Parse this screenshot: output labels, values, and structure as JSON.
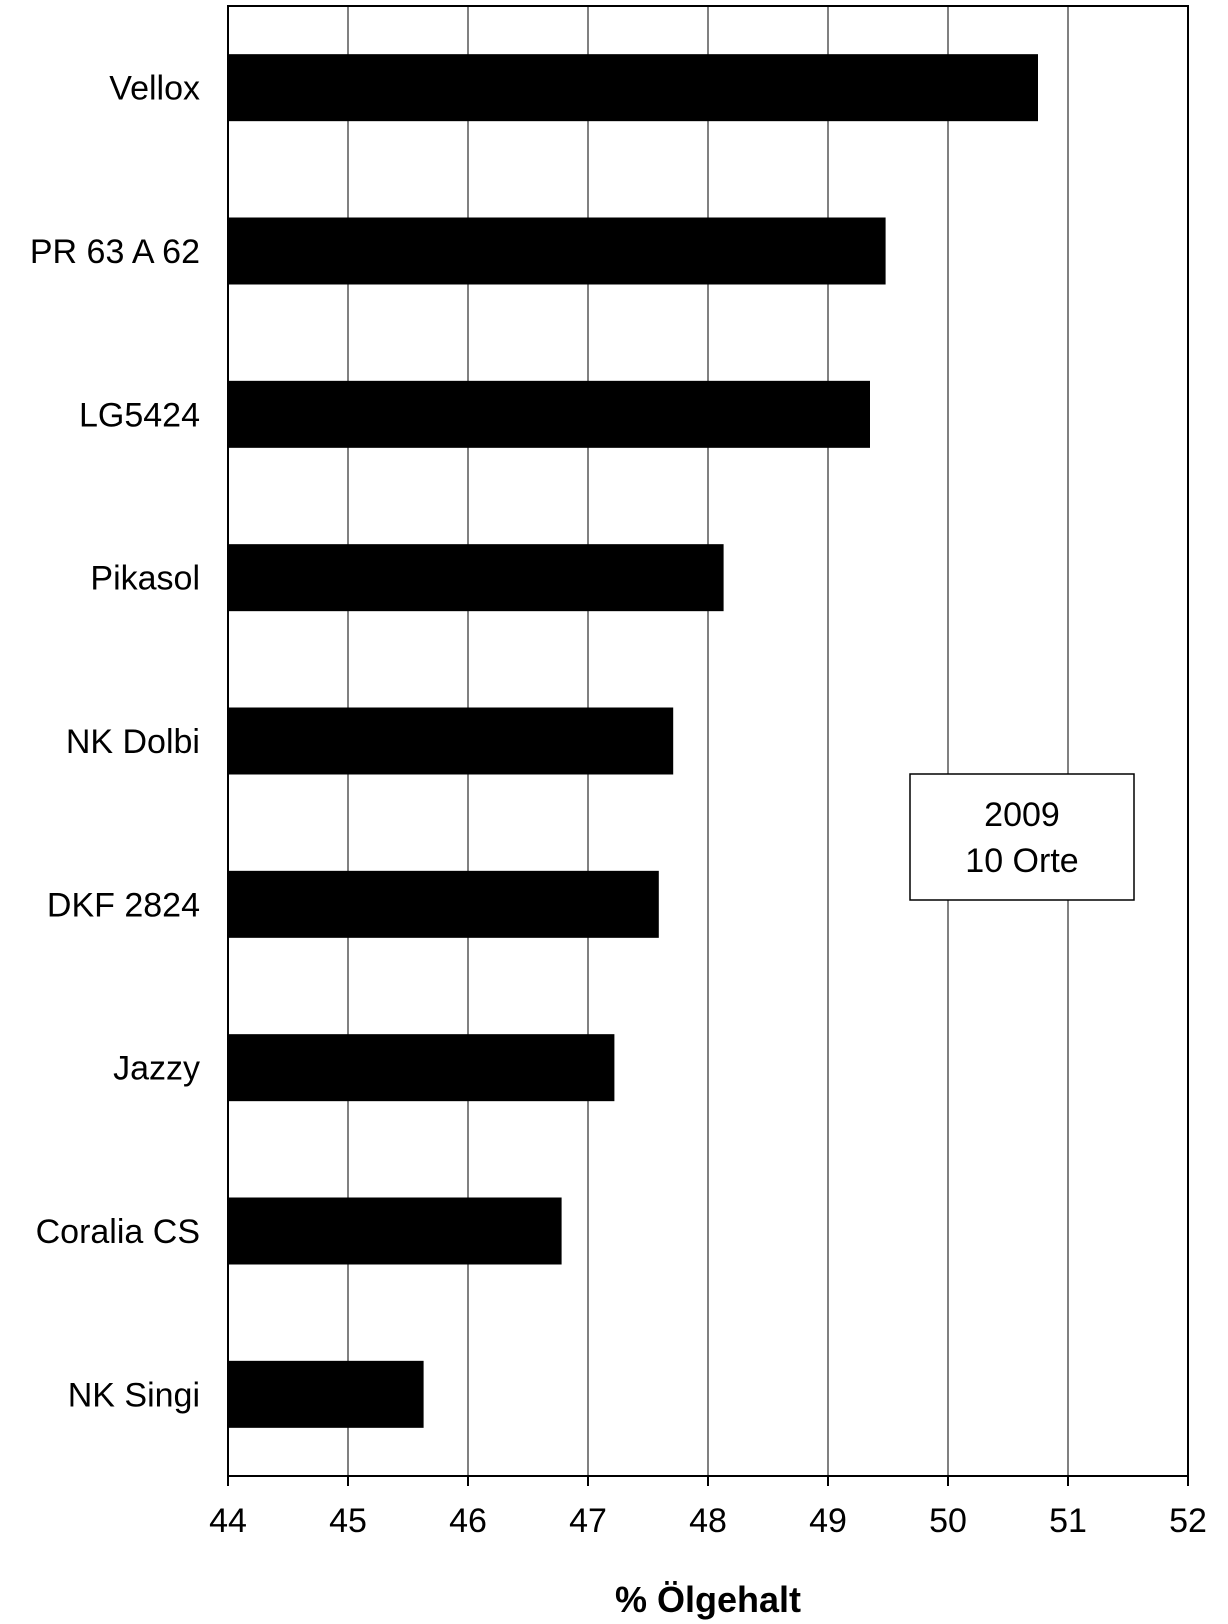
{
  "chart_data": {
    "type": "bar",
    "orientation": "horizontal",
    "categories": [
      "Vellox",
      "PR 63 A 62",
      "LG5424",
      "Pikasol",
      "NK Dolbi",
      "DKF 2824",
      "Jazzy",
      "Coralia CS",
      "NK Singi"
    ],
    "values": [
      50.75,
      49.48,
      49.35,
      48.13,
      47.71,
      47.59,
      47.22,
      46.78,
      45.63
    ],
    "xlabel": "% Ölgehalt",
    "ylabel": "",
    "title": "",
    "xlim": [
      44,
      52
    ],
    "xticks": [
      "44",
      "45",
      "46",
      "47",
      "48",
      "49",
      "50",
      "51",
      "52"
    ],
    "grid": "vertical",
    "bar_color": "#000000",
    "annotation": [
      "2009",
      "10 Orte"
    ]
  }
}
